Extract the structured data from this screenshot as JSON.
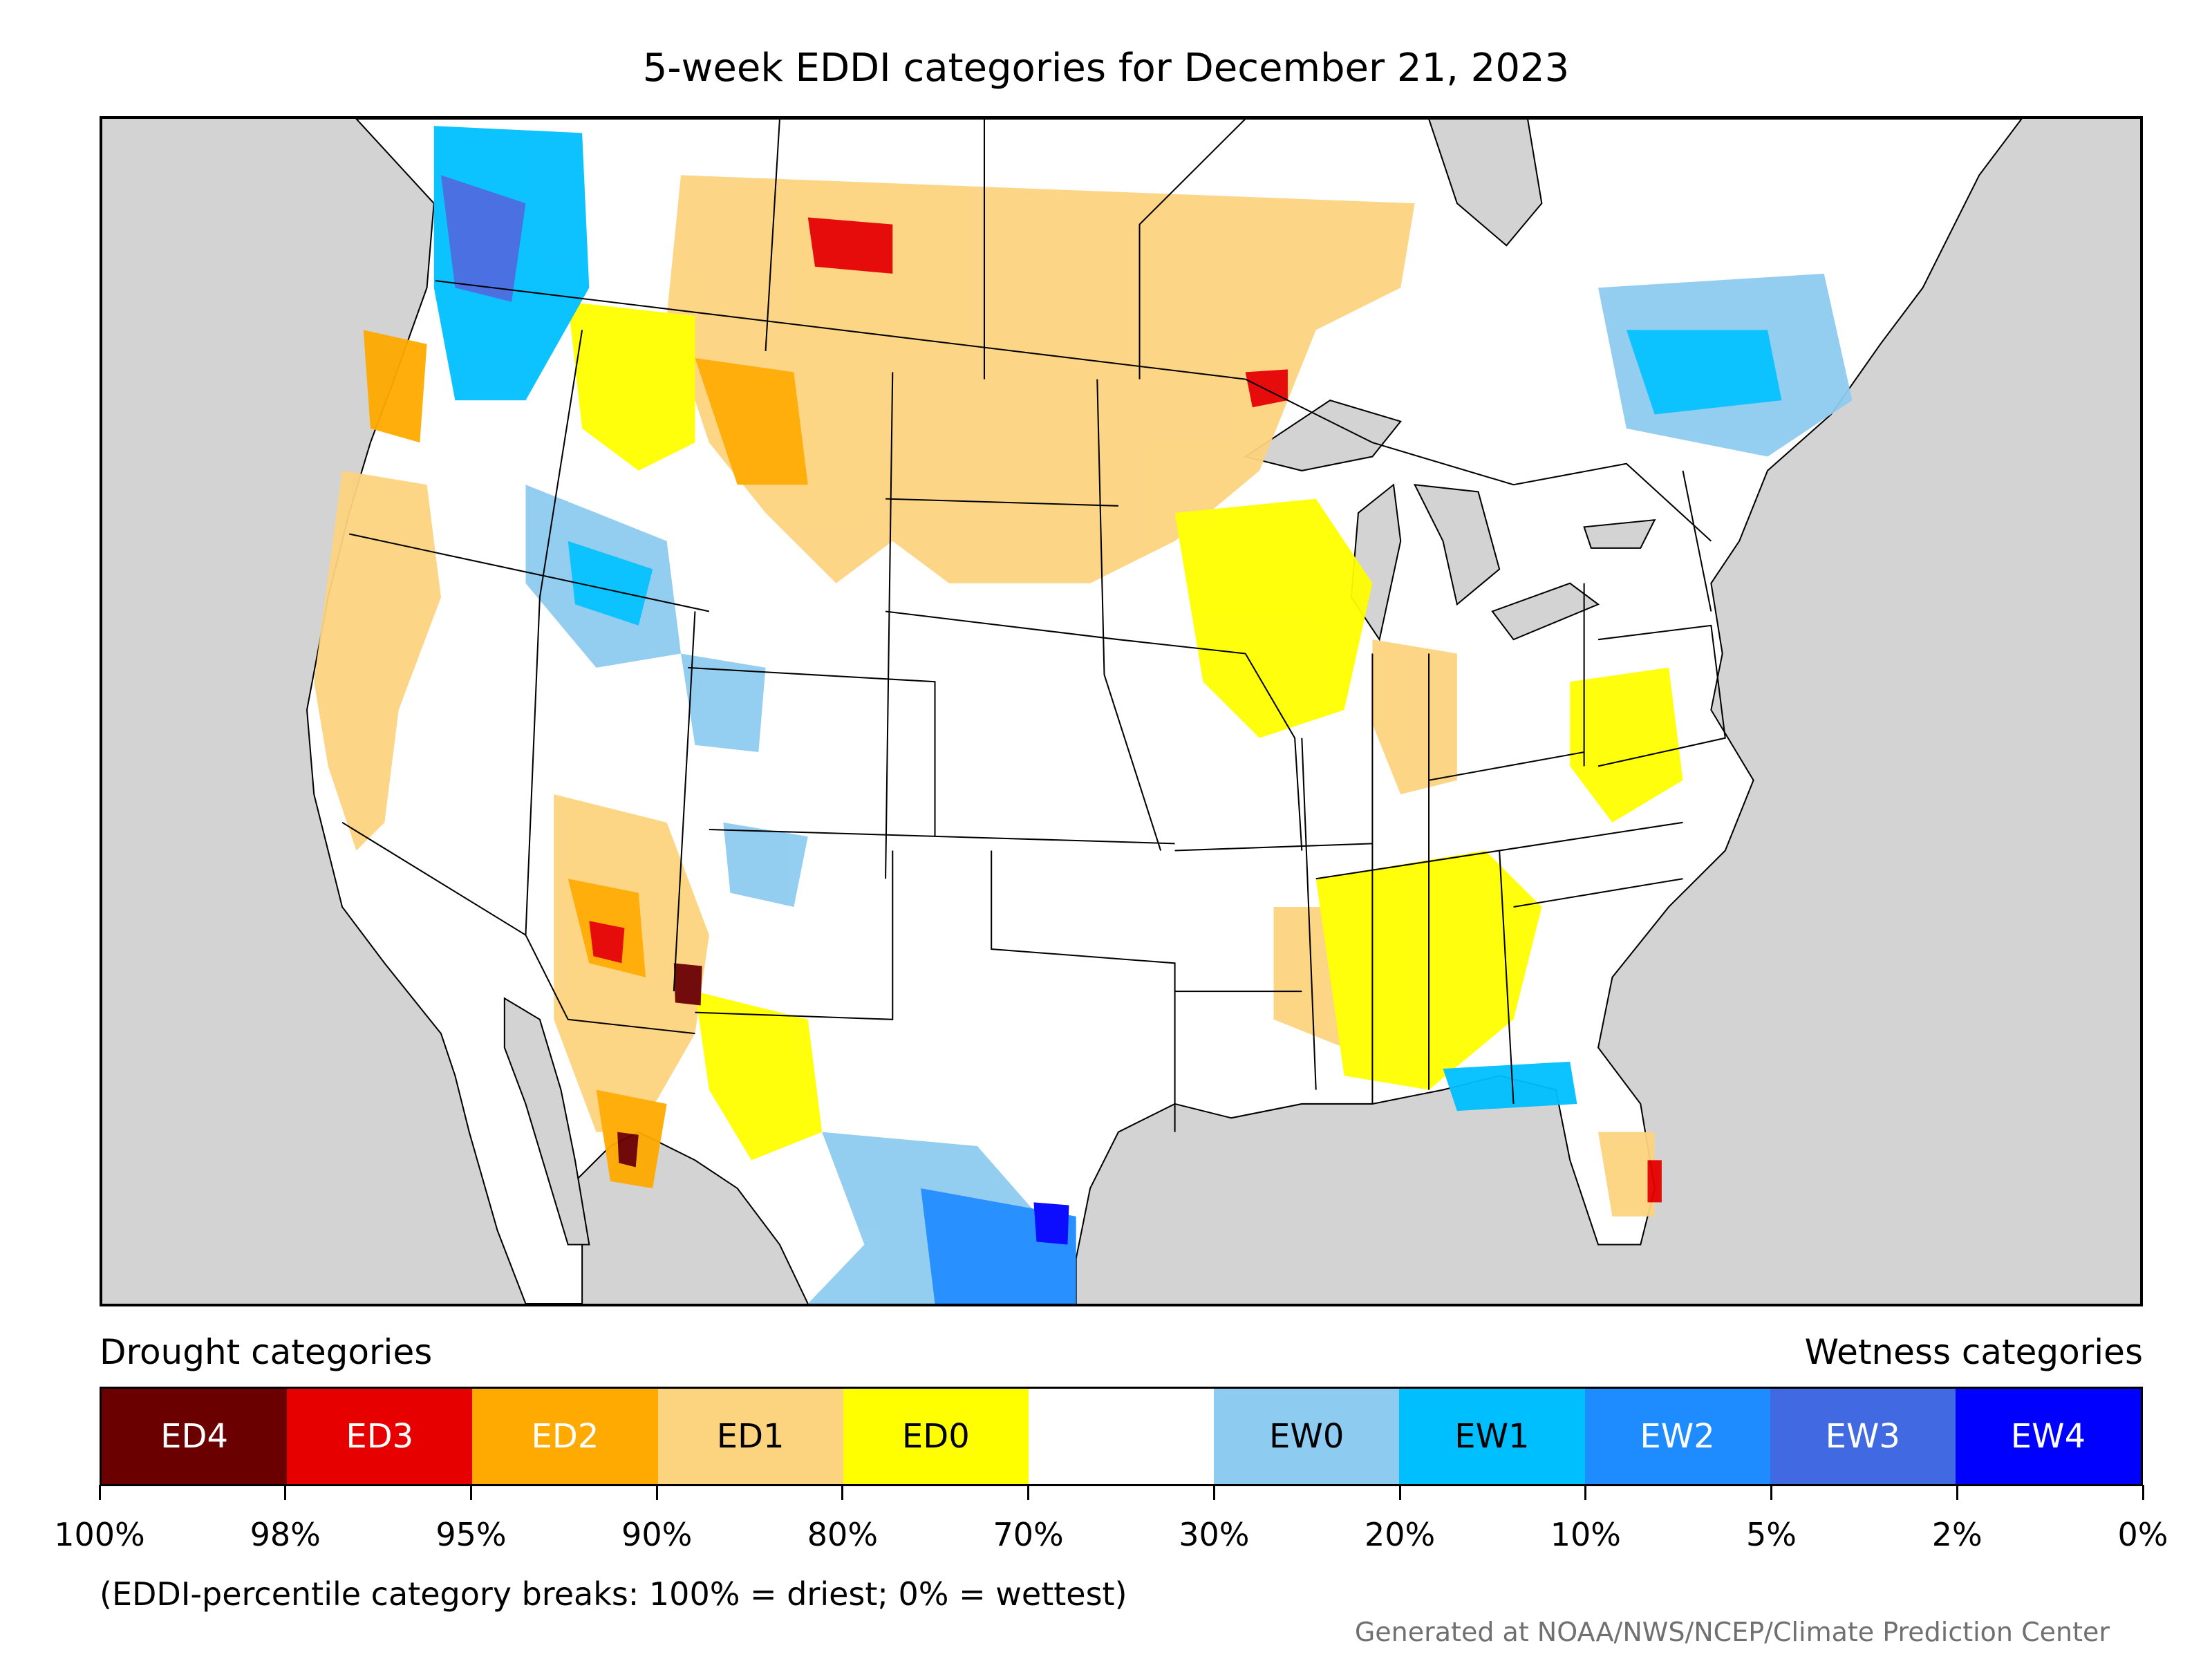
{
  "title": "5-week EDDI categories for December 21, 2023",
  "legend": {
    "drought_heading": "Drought categories",
    "wetness_heading": "Wetness categories",
    "categories": [
      {
        "label": "ED4",
        "color": "#6b0000",
        "text_color": "#ffffff"
      },
      {
        "label": "ED3",
        "color": "#e60000",
        "text_color": "#ffffff"
      },
      {
        "label": "ED2",
        "color": "#ffaa00",
        "text_color": "#ffffff"
      },
      {
        "label": "ED1",
        "color": "#fcd37f",
        "text_color": "#000000"
      },
      {
        "label": "ED0",
        "color": "#ffff00",
        "text_color": "#000000"
      },
      {
        "label": "",
        "color": "#ffffff",
        "text_color": "#000000"
      },
      {
        "label": "EW0",
        "color": "#8ecbf0",
        "text_color": "#000000"
      },
      {
        "label": "EW1",
        "color": "#00bfff",
        "text_color": "#000000"
      },
      {
        "label": "EW2",
        "color": "#1e8cff",
        "text_color": "#ffffff"
      },
      {
        "label": "EW3",
        "color": "#4169e1",
        "text_color": "#ffffff"
      },
      {
        "label": "EW4",
        "color": "#0000ff",
        "text_color": "#ffffff"
      }
    ],
    "ticks": [
      "100%",
      "98%",
      "95%",
      "90%",
      "80%",
      "70%",
      "30%",
      "20%",
      "10%",
      "5%",
      "2%",
      "0%"
    ]
  },
  "footnote": "(EDDI-percentile category breaks: 100% = driest; 0% = wettest)",
  "credit": "Generated at NOAA/NWS/NCEP/Climate Prediction Center"
}
